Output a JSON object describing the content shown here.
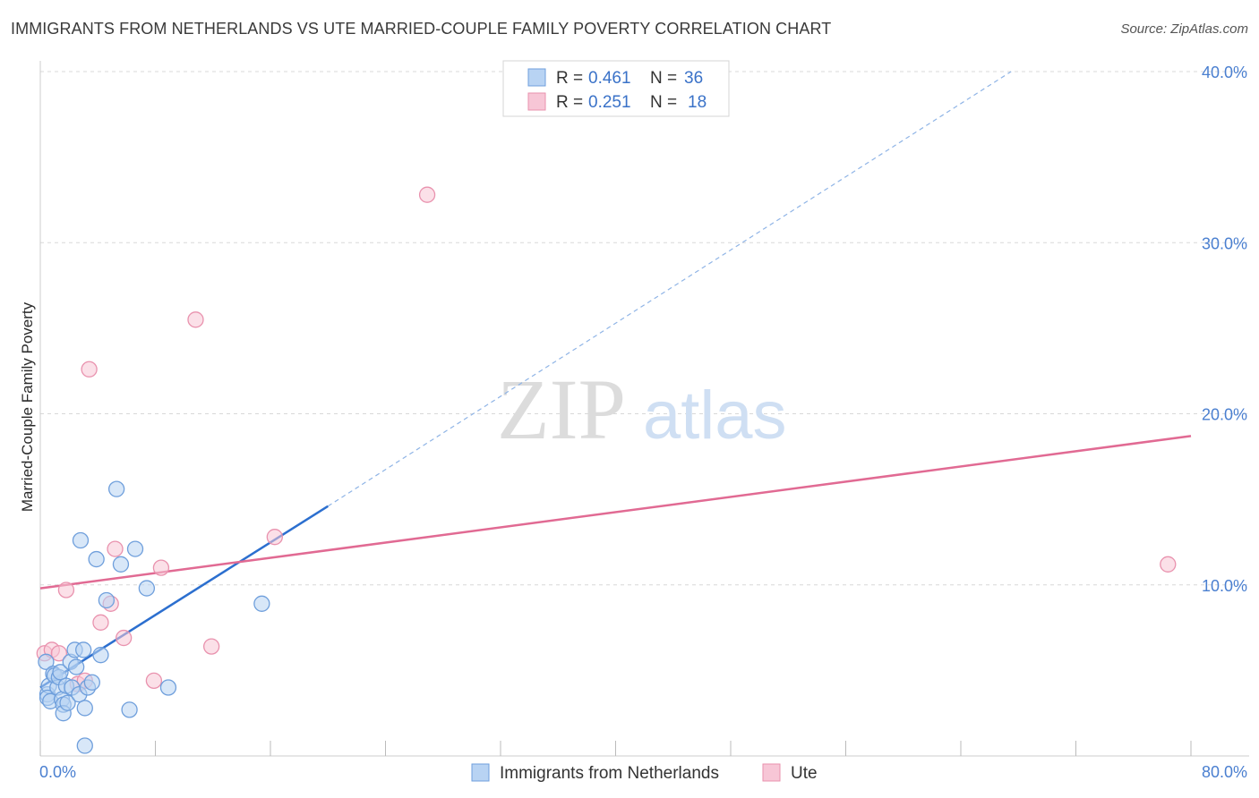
{
  "title": "IMMIGRANTS FROM NETHERLANDS VS UTE MARRIED-COUPLE FAMILY POVERTY CORRELATION CHART",
  "source": "Source: ZipAtlas.com",
  "watermark": {
    "zip": "ZIP",
    "atlas": "atlas"
  },
  "colors": {
    "blue_fill": "#b8d3f3",
    "blue_stroke": "#6f9fdc",
    "blue_line": "#2c6fcf",
    "pink_fill": "#f7c6d6",
    "pink_stroke": "#e992ae",
    "pink_line": "#e16a93",
    "grid": "#d8d8d8",
    "tick_text": "#4a7fd0"
  },
  "legend_top": [
    {
      "r_label": "R =",
      "r_value": "0.461",
      "n_label": "N =",
      "n_value": "36"
    },
    {
      "r_label": "R =",
      "r_value": "0.251",
      "n_label": "N =",
      "n_value": "18"
    }
  ],
  "chart_data": {
    "type": "scatter",
    "title": "IMMIGRANTS FROM NETHERLANDS VS UTE MARRIED-COUPLE FAMILY POVERTY CORRELATION CHART",
    "xlabel": "",
    "ylabel": "Married-Couple Family Poverty",
    "xlim": [
      0,
      80
    ],
    "ylim": [
      0,
      40
    ],
    "x_tick_labels": [
      "0.0%",
      "80.0%"
    ],
    "y_ticks": [
      10,
      20,
      30,
      40
    ],
    "y_tick_labels": [
      "10.0%",
      "20.0%",
      "30.0%",
      "40.0%"
    ],
    "legend": [
      "Immigrants from Netherlands",
      "Ute"
    ],
    "series": [
      {
        "name": "Immigrants from Netherlands",
        "R": 0.461,
        "N": 36,
        "points": [
          [
            0.4,
            5.5
          ],
          [
            0.5,
            3.6
          ],
          [
            0.6,
            4.1
          ],
          [
            0.5,
            3.4
          ],
          [
            0.7,
            3.2
          ],
          [
            0.9,
            4.8
          ],
          [
            1.0,
            4.7
          ],
          [
            1.2,
            4.0
          ],
          [
            1.3,
            4.6
          ],
          [
            1.4,
            4.9
          ],
          [
            1.5,
            3.3
          ],
          [
            1.6,
            3.0
          ],
          [
            1.6,
            2.5
          ],
          [
            1.8,
            4.1
          ],
          [
            1.9,
            3.1
          ],
          [
            2.1,
            5.5
          ],
          [
            2.2,
            4.0
          ],
          [
            2.4,
            6.2
          ],
          [
            2.5,
            5.2
          ],
          [
            2.7,
            3.6
          ],
          [
            2.8,
            12.6
          ],
          [
            3.0,
            6.2
          ],
          [
            3.1,
            2.8
          ],
          [
            3.3,
            4.0
          ],
          [
            3.1,
            0.6
          ],
          [
            3.9,
            11.5
          ],
          [
            4.2,
            5.9
          ],
          [
            4.6,
            9.1
          ],
          [
            5.3,
            15.6
          ],
          [
            5.6,
            11.2
          ],
          [
            6.2,
            2.7
          ],
          [
            6.6,
            12.1
          ],
          [
            7.4,
            9.8
          ],
          [
            8.9,
            4.0
          ],
          [
            15.4,
            8.9
          ],
          [
            3.6,
            4.3
          ]
        ],
        "trend": {
          "x_start": 0,
          "y_start": 4.0,
          "x_end": 20,
          "y_end": 14.6,
          "x_dash_end": 67.5,
          "y_dash_end": 40.0
        }
      },
      {
        "name": "Ute",
        "R": 0.251,
        "N": 18,
        "points": [
          [
            0.3,
            6.0
          ],
          [
            0.8,
            6.2
          ],
          [
            1.3,
            6.0
          ],
          [
            1.8,
            9.7
          ],
          [
            2.6,
            4.2
          ],
          [
            3.1,
            4.4
          ],
          [
            3.4,
            22.6
          ],
          [
            4.2,
            7.8
          ],
          [
            4.9,
            8.9
          ],
          [
            5.2,
            12.1
          ],
          [
            5.8,
            6.9
          ],
          [
            7.9,
            4.4
          ],
          [
            8.4,
            11.0
          ],
          [
            10.8,
            25.5
          ],
          [
            11.9,
            6.4
          ],
          [
            16.3,
            12.8
          ],
          [
            26.9,
            32.8
          ],
          [
            78.4,
            11.2
          ]
        ],
        "trend": {
          "x_start": 0,
          "y_start": 9.8,
          "x_end": 80,
          "y_end": 18.7
        }
      }
    ]
  }
}
